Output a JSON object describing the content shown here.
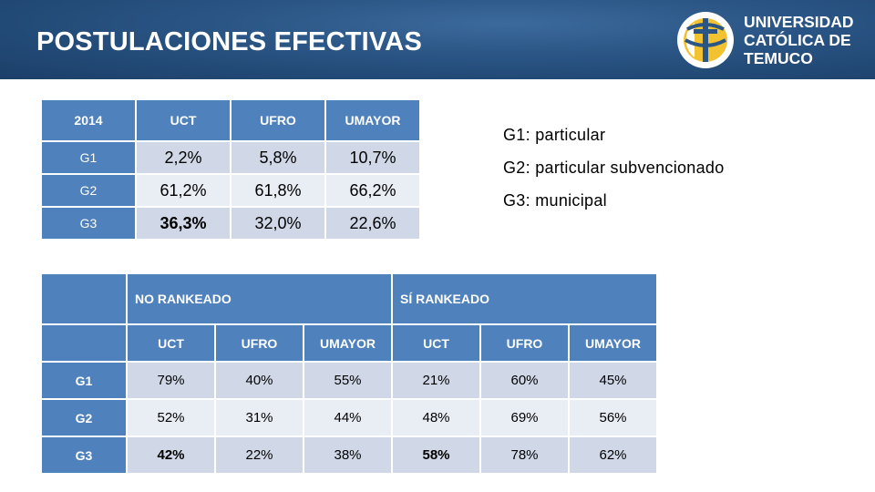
{
  "header": {
    "title": "POSTULACIONES EFECTIVAS",
    "logo_lines": [
      "UNIVERSIDAD",
      "CATÓLICA DE",
      "TEMUCO"
    ],
    "colors": {
      "header_bg": "#2a5585",
      "logo_yellow": "#f2c230",
      "table_header": "#4f81bd"
    }
  },
  "table1": {
    "corner": "2014",
    "columns": [
      "UCT",
      "UFRO",
      "UMAYOR"
    ],
    "rows": [
      {
        "label": "G1",
        "values": [
          "2,2%",
          "5,8%",
          "10,7%"
        ]
      },
      {
        "label": "G2",
        "values": [
          "61,2%",
          "61,8%",
          "66,2%"
        ]
      },
      {
        "label": "G3",
        "values": [
          "36,3%",
          "32,0%",
          "22,6%"
        ]
      }
    ]
  },
  "legend": [
    "G1: particular",
    "G2: particular subvencionado",
    "G3: municipal"
  ],
  "table2": {
    "groups": [
      "NO RANKEADO",
      "SÍ RANKEADO"
    ],
    "columns": [
      "UCT",
      "UFRO",
      "UMAYOR",
      "UCT",
      "UFRO",
      "UMAYOR"
    ],
    "rows": [
      {
        "label": "G1",
        "values": [
          "79%",
          "40%",
          "55%",
          "21%",
          "60%",
          "45%"
        ]
      },
      {
        "label": "G2",
        "values": [
          "52%",
          "31%",
          "44%",
          "48%",
          "69%",
          "56%"
        ]
      },
      {
        "label": "G3",
        "values": [
          "42%",
          "22%",
          "38%",
          "58%",
          "78%",
          "62%"
        ]
      }
    ]
  }
}
